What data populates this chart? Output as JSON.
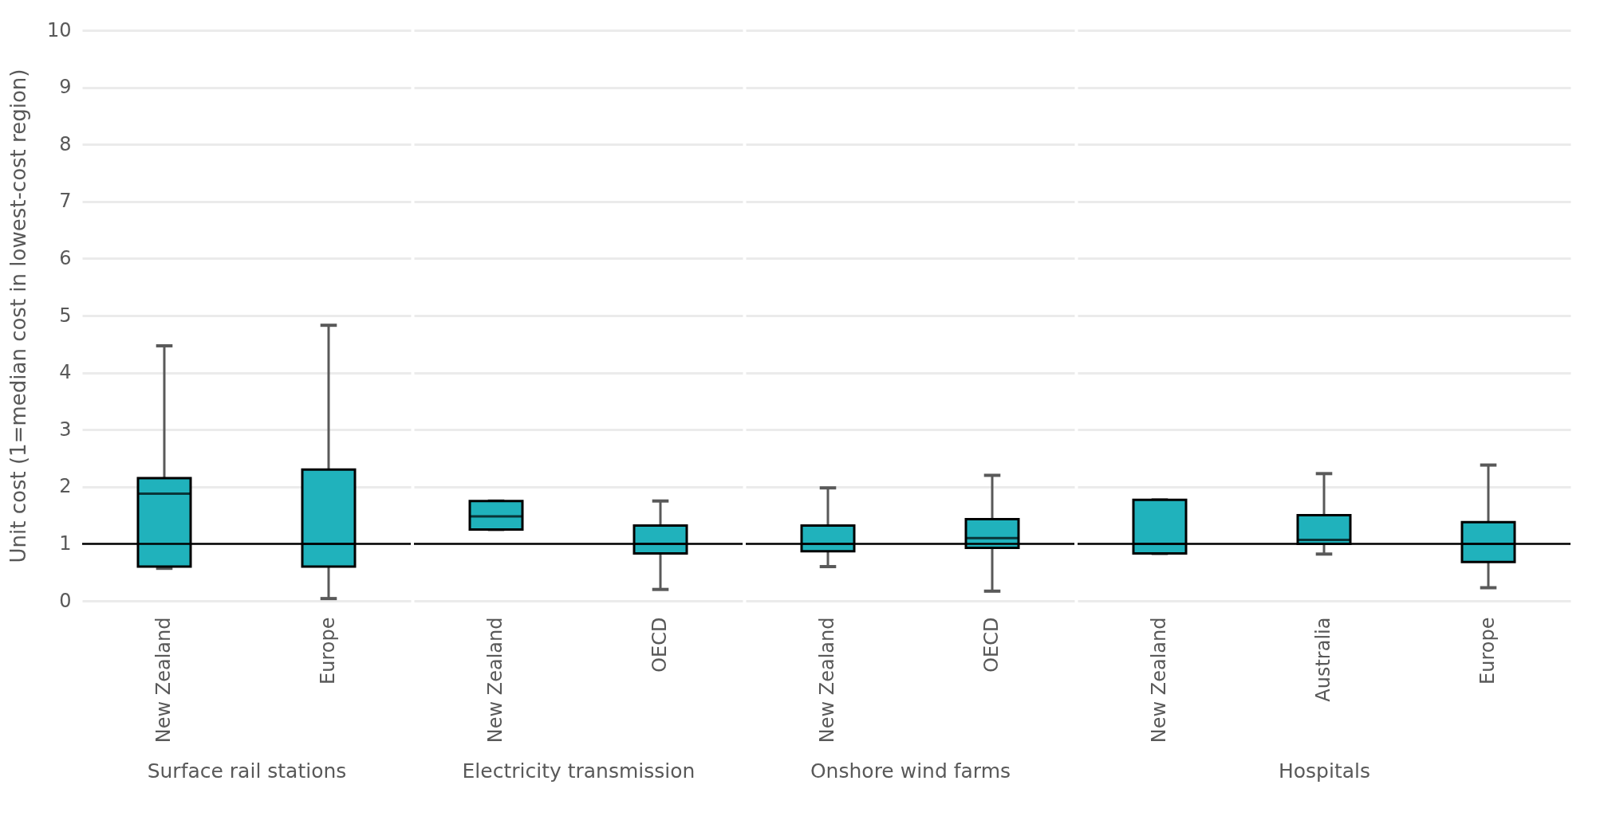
{
  "chart_data": [
    {
      "type": "box",
      "xlabel": "Surface rail stations",
      "ylabel": "Unit cost (1=median cost in lowest-cost region)",
      "categories": [
        "New Zealand",
        "Europe"
      ],
      "ylim": [
        0,
        10
      ],
      "yticks": [
        0,
        1,
        2,
        3,
        4,
        5,
        6,
        7,
        8,
        9,
        10
      ],
      "grid": "y",
      "color": "#20b2bc",
      "ref_lines": [
        {
          "axis": "y",
          "value": 1,
          "color": "#000000"
        }
      ],
      "boxes": [
        {
          "low": 0.57,
          "q1": 0.6,
          "median": 1.88,
          "q3": 2.15,
          "high": 4.47
        },
        {
          "low": 0.04,
          "q1": 0.6,
          "median": 1.0,
          "q3": 2.3,
          "high": 4.83
        }
      ]
    },
    {
      "type": "box",
      "xlabel": "Electricity transmission",
      "categories": [
        "New Zealand",
        "OECD"
      ],
      "ylim": [
        0,
        10
      ],
      "yticks": [
        0,
        1,
        2,
        3,
        4,
        5,
        6,
        7,
        8,
        9,
        10
      ],
      "grid": "y",
      "tick_labels": "x",
      "color": "#20b2bc",
      "ref_lines": [
        {
          "axis": "y",
          "value": 1,
          "color": "#000000"
        }
      ],
      "boxes": [
        {
          "low": 1.25,
          "q1": 1.25,
          "median": 1.48,
          "q3": 1.75,
          "high": 1.75
        },
        {
          "low": 0.2,
          "q1": 0.83,
          "median": 1.0,
          "q3": 1.32,
          "high": 1.75
        }
      ]
    },
    {
      "type": "box",
      "xlabel": "Onshore wind farms",
      "categories": [
        "New Zealand",
        "OECD"
      ],
      "ylim": [
        0,
        10
      ],
      "yticks": [
        0,
        1,
        2,
        3,
        4,
        5,
        6,
        7,
        8,
        9,
        10
      ],
      "grid": "y",
      "tick_labels": "x",
      "color": "#20b2bc",
      "ref_lines": [
        {
          "axis": "y",
          "value": 1,
          "color": "#000000"
        }
      ],
      "boxes": [
        {
          "low": 0.6,
          "q1": 0.87,
          "median": 1.0,
          "q3": 1.32,
          "high": 1.98
        },
        {
          "low": 0.17,
          "q1": 0.93,
          "median": 1.1,
          "q3": 1.43,
          "high": 2.2
        }
      ]
    },
    {
      "type": "box",
      "xlabel": "Hospitals",
      "categories": [
        "New Zealand",
        "Australia",
        "Europe"
      ],
      "ylim": [
        0,
        10
      ],
      "yticks": [
        0,
        1,
        2,
        3,
        4,
        5,
        6,
        7,
        8,
        9,
        10
      ],
      "grid": "y",
      "tick_labels": "x",
      "color": "#20b2bc",
      "ref_lines": [
        {
          "axis": "y",
          "value": 1,
          "color": "#000000"
        }
      ],
      "boxes": [
        {
          "low": 0.83,
          "q1": 0.83,
          "median": 1.0,
          "q3": 1.77,
          "high": 1.77
        },
        {
          "low": 0.82,
          "q1": 1.0,
          "median": 1.07,
          "q3": 1.5,
          "high": 2.23
        },
        {
          "low": 0.23,
          "q1": 0.68,
          "median": 1.0,
          "q3": 1.38,
          "high": 2.38
        }
      ]
    }
  ]
}
